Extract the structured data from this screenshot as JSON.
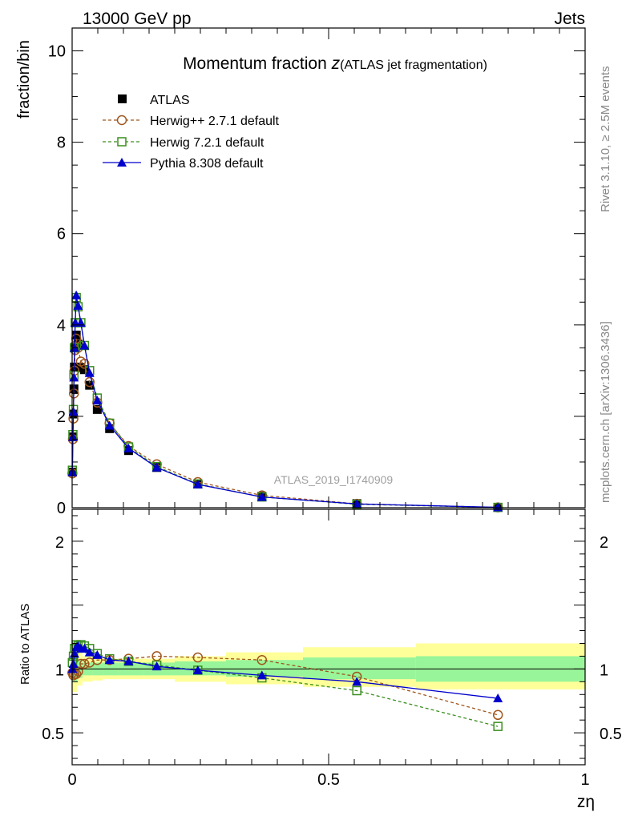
{
  "header": {
    "energy_label": "13000 GeV pp",
    "category_label": "Jets"
  },
  "side_labels": {
    "rivet": "Rivet 3.1.10, ≥ 2.5M events",
    "source": "mcplots.cern.ch [arXiv:1306.3436]"
  },
  "watermark": "ATLAS_2019_I1740909",
  "colors": {
    "atlas": "#000000",
    "herwigpp": "#a0561e",
    "herwig7": "#3a8e1f",
    "pythia": "#0000cc",
    "band_inner": "#99f599",
    "band_outer": "#ffff99"
  },
  "chart_data": [
    {
      "type": "scatter",
      "title_main": "Momentum fraction ",
      "title_var": "z",
      "title_sub": "(ATLAS jet fragmentation)",
      "xlabel": "",
      "ylabel": "fraction/bin",
      "xlim": [
        0,
        1
      ],
      "ylim": [
        0,
        10.5
      ],
      "y_ticks": [
        0,
        2,
        4,
        6,
        8,
        10
      ],
      "y_tick_labels": [
        "0",
        "2",
        "4",
        "6",
        "8",
        "10"
      ],
      "legend_position": "top-left",
      "series": [
        {
          "name": "ATLAS",
          "marker": "square-filled",
          "x": [
            0.0005,
            0.0015,
            0.0025,
            0.0035,
            0.0045,
            0.006,
            0.008,
            0.0115,
            0.017,
            0.024,
            0.034,
            0.049,
            0.073,
            0.11,
            0.165,
            0.245,
            0.37,
            0.555,
            0.83
          ],
          "y": [
            0.78,
            1.55,
            2.05,
            2.6,
            3.08,
            3.52,
            3.78,
            3.58,
            3.07,
            3.02,
            2.68,
            2.15,
            1.73,
            1.25,
            0.88,
            0.52,
            0.25,
            0.09,
            0.01
          ]
        },
        {
          "name": "Herwig++ 2.7.1 default",
          "marker": "circle-open",
          "line": "dashed",
          "x": [
            0.0005,
            0.0015,
            0.0025,
            0.0035,
            0.0045,
            0.006,
            0.008,
            0.0115,
            0.017,
            0.024,
            0.034,
            0.049,
            0.073,
            0.11,
            0.165,
            0.245,
            0.37,
            0.555,
            0.83
          ],
          "y": [
            0.75,
            1.5,
            1.95,
            2.5,
            3.0,
            3.45,
            3.7,
            3.5,
            3.2,
            3.15,
            2.75,
            2.3,
            1.85,
            1.35,
            0.95,
            0.56,
            0.27,
            0.085,
            0.0065
          ]
        },
        {
          "name": "Herwig 7.2.1 default",
          "marker": "square-open",
          "line": "dashed",
          "x": [
            0.0005,
            0.0015,
            0.0025,
            0.0035,
            0.0045,
            0.006,
            0.008,
            0.0115,
            0.017,
            0.024,
            0.034,
            0.049,
            0.073,
            0.11,
            0.165,
            0.245,
            0.37,
            0.555,
            0.83
          ],
          "y": [
            0.82,
            1.6,
            2.15,
            2.9,
            3.5,
            4.05,
            4.6,
            4.4,
            4.05,
            3.55,
            3.0,
            2.4,
            1.85,
            1.33,
            0.9,
            0.52,
            0.235,
            0.075,
            0.0055
          ]
        },
        {
          "name": "Pythia 8.308 default",
          "marker": "triangle-filled",
          "line": "solid",
          "x": [
            0.0005,
            0.0015,
            0.0025,
            0.0035,
            0.0045,
            0.006,
            0.008,
            0.0115,
            0.017,
            0.024,
            0.034,
            0.049,
            0.073,
            0.11,
            0.165,
            0.245,
            0.37,
            0.555,
            0.83
          ],
          "y": [
            0.78,
            1.55,
            2.1,
            2.85,
            3.5,
            4.05,
            4.65,
            4.42,
            4.05,
            3.55,
            2.95,
            2.35,
            1.8,
            1.3,
            0.88,
            0.51,
            0.235,
            0.082,
            0.0077
          ]
        }
      ]
    },
    {
      "type": "line",
      "xlabel": "zη",
      "ylabel": "Ratio to ATLAS",
      "xlim": [
        0,
        1
      ],
      "ylim": [
        0.25,
        2.25
      ],
      "y_ticks": [
        0.5,
        1,
        2
      ],
      "y_tick_labels": [
        "0.5",
        "1",
        "2"
      ],
      "x_ticks": [
        0,
        0.5,
        1
      ],
      "x_tick_labels": [
        "0",
        "0.5",
        "1"
      ],
      "uncertainty_bands": {
        "x_edges": [
          0,
          0.01,
          0.02,
          0.04,
          0.06,
          0.09,
          0.14,
          0.2,
          0.3,
          0.45,
          0.67,
          1.0
        ],
        "inner_lo": [
          0.9,
          0.93,
          0.95,
          0.95,
          0.95,
          0.95,
          0.95,
          0.95,
          0.94,
          0.92,
          0.9
        ],
        "inner_hi": [
          1.1,
          1.07,
          1.05,
          1.05,
          1.05,
          1.05,
          1.05,
          1.06,
          1.07,
          1.09,
          1.1
        ],
        "outer_lo": [
          0.82,
          0.87,
          0.9,
          0.91,
          0.92,
          0.92,
          0.92,
          0.9,
          0.88,
          0.86,
          0.84
        ],
        "outer_hi": [
          1.18,
          1.13,
          1.1,
          1.09,
          1.08,
          1.08,
          1.08,
          1.1,
          1.13,
          1.17,
          1.2
        ]
      },
      "series": [
        {
          "name": "Herwig++ 2.7.1 default",
          "marker": "circle-open",
          "line": "dashed",
          "x": [
            0.0005,
            0.0025,
            0.0045,
            0.008,
            0.0115,
            0.017,
            0.024,
            0.034,
            0.049,
            0.073,
            0.11,
            0.165,
            0.245,
            0.37,
            0.555,
            0.83
          ],
          "y": [
            0.97,
            0.95,
            0.96,
            0.96,
            0.98,
            1.04,
            1.04,
            1.05,
            1.07,
            1.07,
            1.08,
            1.1,
            1.09,
            1.07,
            0.94,
            0.64
          ]
        },
        {
          "name": "Herwig 7.2.1 default",
          "marker": "square-open",
          "line": "dashed",
          "x": [
            0.0005,
            0.0025,
            0.0045,
            0.008,
            0.0115,
            0.017,
            0.024,
            0.034,
            0.049,
            0.073,
            0.11,
            0.165,
            0.245,
            0.37,
            0.555,
            0.83
          ],
          "y": [
            1.05,
            1.1,
            1.16,
            1.19,
            1.18,
            1.19,
            1.18,
            1.16,
            1.12,
            1.08,
            1.06,
            1.03,
            0.99,
            0.93,
            0.83,
            0.55
          ]
        },
        {
          "name": "Pythia 8.308 default",
          "marker": "triangle-filled",
          "line": "solid",
          "x": [
            0.0005,
            0.0025,
            0.0045,
            0.008,
            0.0115,
            0.017,
            0.024,
            0.034,
            0.049,
            0.073,
            0.11,
            0.165,
            0.245,
            0.37,
            0.555,
            0.83
          ],
          "y": [
            1.0,
            1.04,
            1.12,
            1.17,
            1.18,
            1.16,
            1.16,
            1.13,
            1.11,
            1.07,
            1.06,
            1.02,
            0.99,
            0.95,
            0.9,
            0.77
          ]
        }
      ]
    }
  ]
}
